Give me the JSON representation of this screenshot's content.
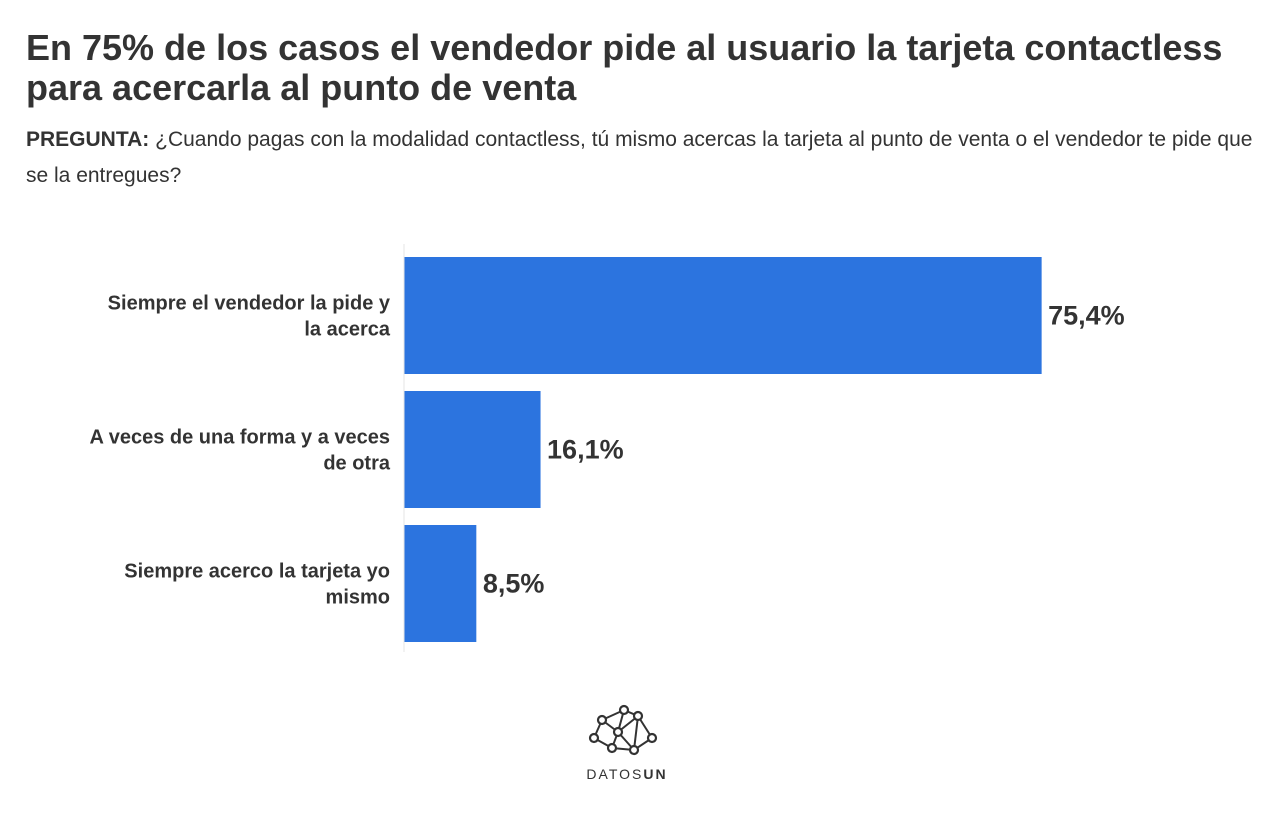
{
  "title": "En 75% de los casos el vendedor pide al usuario la tarjeta contactless para acercarla al punto de venta",
  "subtitle": {
    "label": "PREGUNTA:",
    "text": " ¿Cuando pagas con la modalidad contactless, tú mismo acercas la tarjeta al punto de venta o el vendedor te pide que se la entregues?"
  },
  "chart_data": {
    "type": "bar",
    "orientation": "horizontal",
    "categories": [
      "Siempre el vendedor la pide y la acerca",
      "A veces de una forma y a veces de otra",
      "Siempre acerco la tarjeta yo mismo"
    ],
    "values": [
      75.4,
      16.1,
      8.5
    ],
    "value_labels": [
      "75,4%",
      "16,1%",
      "8,5%"
    ],
    "xlim": [
      0,
      100
    ],
    "grid": false,
    "bar_color": "#2c74df"
  },
  "logo": {
    "icon": "network-icon",
    "text_light": "DATOS",
    "text_bold": "UN"
  }
}
